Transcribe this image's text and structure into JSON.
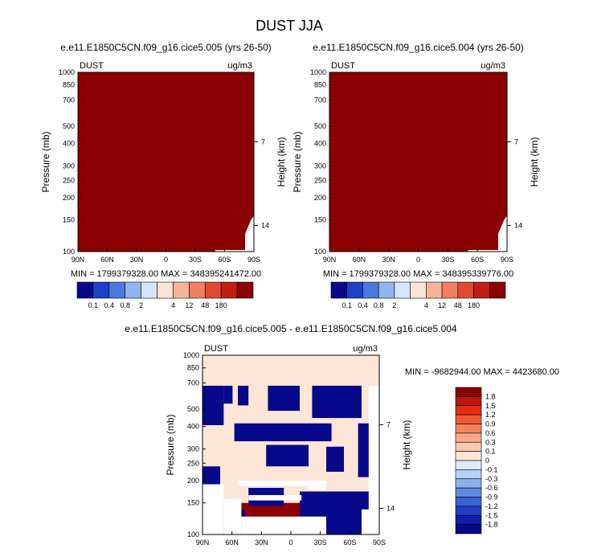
{
  "page_title": "DUST JJA",
  "chart_data": [
    {
      "type": "heatmap",
      "title": "e.e11.E1850C5CN.f09_g16.cice5.005 (yrs 26-50)",
      "field_label": "DUST",
      "units": "ug/m3",
      "xlabel": "",
      "ylabel": "Pressure (mb)",
      "y2label": "Height (km)",
      "x_ticks": [
        "90N",
        "60N",
        "30N",
        "0",
        "30S",
        "60S",
        "90S"
      ],
      "y_ticks": [
        "100",
        "150",
        "200",
        "250",
        "300",
        "400",
        "500",
        "700",
        "850",
        "1000"
      ],
      "y2_ticks": [
        "14",
        "7"
      ],
      "y_scale": "log",
      "ylim": [
        1000,
        100
      ],
      "xlim": [
        "90N",
        "90S"
      ],
      "min": "1799379328.00",
      "max": "348395241472.00",
      "stats": "MIN = 1799379328.00   MAX = 348395241472.00",
      "fill_color": "#8b0000",
      "colorbar": {
        "orientation": "horizontal",
        "levels": [
          "0.1",
          "0.4",
          "0.8",
          "2",
          "4",
          "12",
          "48",
          "180"
        ],
        "colors": [
          "#08088a",
          "#1f3fc8",
          "#4a78de",
          "#8fb4ee",
          "#d6e6fa",
          "#fbe3d6",
          "#f5b39a",
          "#ee7f62",
          "#df4a31",
          "#c01e14",
          "#8b0000"
        ]
      }
    },
    {
      "type": "heatmap",
      "title": "e.e11.E1850C5CN.f09_g16.cice5.004 (yrs 26-50)",
      "field_label": "DUST",
      "units": "ug/m3",
      "xlabel": "",
      "ylabel": "Pressure (mb)",
      "y2label": "Height (km)",
      "x_ticks": [
        "90N",
        "60N",
        "30N",
        "0",
        "30S",
        "60S",
        "90S"
      ],
      "y_ticks": [
        "100",
        "150",
        "200",
        "250",
        "300",
        "400",
        "500",
        "700",
        "850",
        "1000"
      ],
      "y2_ticks": [
        "14",
        "7"
      ],
      "y_scale": "log",
      "ylim": [
        1000,
        100
      ],
      "xlim": [
        "90N",
        "90S"
      ],
      "min": "1799379328.00",
      "max": "348395339776.00",
      "stats": "MIN = 1799379328.00   MAX = 348395339776.00",
      "fill_color": "#8b0000",
      "colorbar": {
        "orientation": "horizontal",
        "levels": [
          "0.1",
          "0.4",
          "0.8",
          "2",
          "4",
          "12",
          "48",
          "180"
        ],
        "colors": [
          "#08088a",
          "#1f3fc8",
          "#4a78de",
          "#8fb4ee",
          "#d6e6fa",
          "#fbe3d6",
          "#f5b39a",
          "#ee7f62",
          "#df4a31",
          "#c01e14",
          "#8b0000"
        ]
      }
    },
    {
      "type": "heatmap",
      "title": "e.e11.E1850C5CN.f09_g16.cice5.005 - e.e11.E1850C5CN.f09_g16.cice5.004",
      "field_label": "DUST",
      "units": "ug/m3",
      "xlabel": "",
      "ylabel": "Pressure (mb)",
      "y2label": "Height (km)",
      "x_ticks": [
        "90N",
        "60N",
        "30N",
        "0",
        "30S",
        "60S",
        "90S"
      ],
      "y_ticks": [
        "100",
        "150",
        "200",
        "250",
        "300",
        "400",
        "500",
        "700",
        "850",
        "1000"
      ],
      "y2_ticks": [
        "14",
        "7"
      ],
      "y_scale": "log",
      "ylim": [
        1000,
        100
      ],
      "xlim": [
        "90N",
        "90S"
      ],
      "min": "-9682944.00",
      "max": "4423680.00",
      "stats": "MIN = -9682944.00  MAX = 4423680.00",
      "colorbar": {
        "orientation": "vertical",
        "levels": [
          "1.8",
          "1.5",
          "1.2",
          "0.9",
          "0.6",
          "0.3",
          "0.1",
          "0",
          "-0.1",
          "-0.3",
          "-0.6",
          "-0.9",
          "-1.2",
          "-1.5",
          "-1.8"
        ],
        "colors": [
          "#8b0000",
          "#c0150a",
          "#e03018",
          "#f05a34",
          "#f5845c",
          "#f8a888",
          "#fbc8ae",
          "#fde6d8",
          "#dbe9fb",
          "#b4d0f5",
          "#8cb0ec",
          "#5f88e0",
          "#3a63d6",
          "#1e3ec6",
          "#0c1fa6",
          "#08088a"
        ]
      }
    }
  ]
}
